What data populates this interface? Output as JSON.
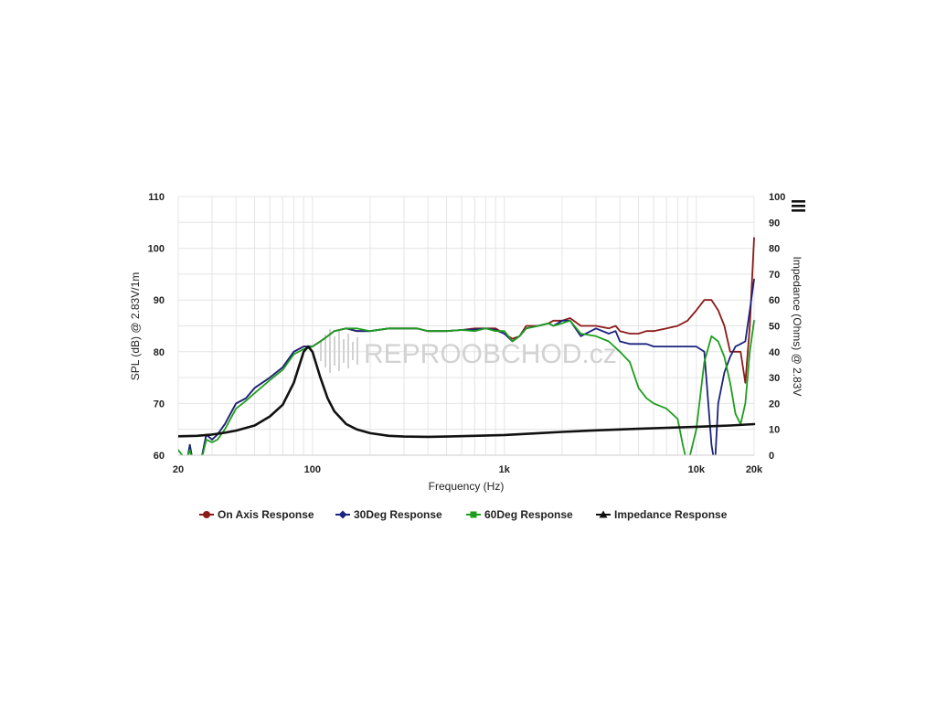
{
  "chart_data": {
    "type": "line",
    "watermark": "REPROOBCHOD.cz",
    "x_axis": {
      "label": "Frequency (Hz)",
      "scale": "log",
      "range": [
        20,
        20000
      ],
      "ticks": [
        {
          "value": 20,
          "label": "20"
        },
        {
          "value": 100,
          "label": "100"
        },
        {
          "value": 1000,
          "label": "1k"
        },
        {
          "value": 10000,
          "label": "10k"
        },
        {
          "value": 20000,
          "label": "20k"
        }
      ]
    },
    "y_axis_left": {
      "label": "SPL (dB) @ 2.83V/1m",
      "range": [
        60,
        110
      ],
      "ticks": [
        "60",
        "70",
        "80",
        "90",
        "100",
        "110"
      ]
    },
    "y_axis_right": {
      "label": "Impedance (Ohms) @ 2.83V",
      "range": [
        0,
        100
      ],
      "ticks": [
        "0",
        "10",
        "20",
        "30",
        "40",
        "50",
        "60",
        "70",
        "80",
        "90",
        "100"
      ]
    },
    "grid": true,
    "legend_position": "bottom",
    "series": [
      {
        "name": "On Axis Response",
        "color": "#8b1a1a",
        "marker": "circle",
        "axis": "left",
        "points": [
          [
            20,
            59
          ],
          [
            22,
            58
          ],
          [
            23,
            62
          ],
          [
            24,
            58
          ],
          [
            26,
            58
          ],
          [
            28,
            64
          ],
          [
            30,
            63
          ],
          [
            32,
            64
          ],
          [
            35,
            66
          ],
          [
            40,
            70
          ],
          [
            45,
            71
          ],
          [
            50,
            73
          ],
          [
            60,
            75
          ],
          [
            70,
            77
          ],
          [
            80,
            80
          ],
          [
            90,
            81
          ],
          [
            100,
            81
          ],
          [
            110,
            82
          ],
          [
            120,
            83
          ],
          [
            130,
            84
          ],
          [
            150,
            84.5
          ],
          [
            170,
            84
          ],
          [
            200,
            84
          ],
          [
            250,
            84.5
          ],
          [
            300,
            84.5
          ],
          [
            350,
            84.5
          ],
          [
            400,
            84
          ],
          [
            500,
            84
          ],
          [
            600,
            84.2
          ],
          [
            700,
            84.5
          ],
          [
            800,
            84.5
          ],
          [
            900,
            84.5
          ],
          [
            1000,
            83.5
          ],
          [
            1100,
            82.5
          ],
          [
            1200,
            83
          ],
          [
            1300,
            85
          ],
          [
            1500,
            85
          ],
          [
            1700,
            85.5
          ],
          [
            1800,
            86
          ],
          [
            2000,
            86
          ],
          [
            2200,
            86.5
          ],
          [
            2500,
            85
          ],
          [
            3000,
            85
          ],
          [
            3500,
            84.5
          ],
          [
            3800,
            85
          ],
          [
            4000,
            84
          ],
          [
            4500,
            83.5
          ],
          [
            5000,
            83.5
          ],
          [
            5500,
            84
          ],
          [
            6000,
            84
          ],
          [
            7000,
            84.5
          ],
          [
            8000,
            85
          ],
          [
            9000,
            86
          ],
          [
            10000,
            88
          ],
          [
            11000,
            90
          ],
          [
            12000,
            90
          ],
          [
            13000,
            88
          ],
          [
            14000,
            85
          ],
          [
            15000,
            80
          ],
          [
            16000,
            80
          ],
          [
            17000,
            80
          ],
          [
            18000,
            74
          ],
          [
            19000,
            85
          ],
          [
            20000,
            102
          ]
        ]
      },
      {
        "name": "30Deg Response",
        "color": "#1a237e",
        "marker": "diamond",
        "axis": "left",
        "points": [
          [
            20,
            59
          ],
          [
            22,
            58
          ],
          [
            23,
            62
          ],
          [
            24,
            58
          ],
          [
            26,
            58
          ],
          [
            28,
            64
          ],
          [
            30,
            63
          ],
          [
            32,
            64
          ],
          [
            35,
            66
          ],
          [
            40,
            70
          ],
          [
            45,
            71
          ],
          [
            50,
            73
          ],
          [
            60,
            75
          ],
          [
            70,
            77
          ],
          [
            80,
            80
          ],
          [
            90,
            81
          ],
          [
            100,
            81
          ],
          [
            110,
            82
          ],
          [
            120,
            83
          ],
          [
            130,
            84
          ],
          [
            150,
            84.5
          ],
          [
            170,
            84
          ],
          [
            200,
            84
          ],
          [
            250,
            84.5
          ],
          [
            300,
            84.5
          ],
          [
            350,
            84.5
          ],
          [
            400,
            84
          ],
          [
            500,
            84
          ],
          [
            600,
            84.2
          ],
          [
            700,
            84.3
          ],
          [
            800,
            84.5
          ],
          [
            900,
            84.2
          ],
          [
            1000,
            83.5
          ],
          [
            1100,
            82
          ],
          [
            1200,
            83
          ],
          [
            1300,
            84.5
          ],
          [
            1500,
            85
          ],
          [
            1700,
            85.5
          ],
          [
            1800,
            85
          ],
          [
            2000,
            86
          ],
          [
            2200,
            86
          ],
          [
            2500,
            83
          ],
          [
            3000,
            84.5
          ],
          [
            3500,
            83.5
          ],
          [
            3800,
            84
          ],
          [
            4000,
            82
          ],
          [
            4500,
            81.5
          ],
          [
            5000,
            81.5
          ],
          [
            5500,
            81.5
          ],
          [
            6000,
            81
          ],
          [
            7000,
            81
          ],
          [
            8000,
            81
          ],
          [
            9000,
            81
          ],
          [
            10000,
            81
          ],
          [
            11000,
            80
          ],
          [
            12000,
            62
          ],
          [
            12500,
            58
          ],
          [
            13000,
            70
          ],
          [
            14000,
            76
          ],
          [
            15000,
            79
          ],
          [
            16000,
            81
          ],
          [
            17000,
            81.5
          ],
          [
            18000,
            82
          ],
          [
            19000,
            88
          ],
          [
            20000,
            94
          ]
        ]
      },
      {
        "name": "60Deg Response",
        "color": "#1e9e1e",
        "marker": "square",
        "axis": "left",
        "points": [
          [
            20,
            61
          ],
          [
            22,
            59
          ],
          [
            23,
            61
          ],
          [
            24,
            58
          ],
          [
            26,
            58
          ],
          [
            28,
            63
          ],
          [
            30,
            62.5
          ],
          [
            32,
            63
          ],
          [
            35,
            65
          ],
          [
            40,
            69
          ],
          [
            45,
            70.5
          ],
          [
            50,
            72
          ],
          [
            60,
            74.5
          ],
          [
            70,
            76.5
          ],
          [
            80,
            79.5
          ],
          [
            90,
            80.5
          ],
          [
            100,
            81
          ],
          [
            110,
            82
          ],
          [
            120,
            83
          ],
          [
            130,
            84
          ],
          [
            150,
            84.5
          ],
          [
            170,
            84.5
          ],
          [
            200,
            84
          ],
          [
            250,
            84.5
          ],
          [
            300,
            84.5
          ],
          [
            350,
            84.5
          ],
          [
            400,
            84
          ],
          [
            500,
            84
          ],
          [
            600,
            84.2
          ],
          [
            700,
            84
          ],
          [
            800,
            84.5
          ],
          [
            900,
            84
          ],
          [
            1000,
            84
          ],
          [
            1100,
            82
          ],
          [
            1200,
            83
          ],
          [
            1300,
            84.5
          ],
          [
            1500,
            85
          ],
          [
            1700,
            85.5
          ],
          [
            1800,
            85
          ],
          [
            2000,
            85.5
          ],
          [
            2200,
            86
          ],
          [
            2500,
            83.5
          ],
          [
            3000,
            83
          ],
          [
            3500,
            82
          ],
          [
            4000,
            80
          ],
          [
            4500,
            78
          ],
          [
            5000,
            73
          ],
          [
            5500,
            71
          ],
          [
            6000,
            70
          ],
          [
            7000,
            69
          ],
          [
            8000,
            67
          ],
          [
            8500,
            62
          ],
          [
            9000,
            58
          ],
          [
            10000,
            65
          ],
          [
            11000,
            78
          ],
          [
            12000,
            83
          ],
          [
            13000,
            82
          ],
          [
            14000,
            79
          ],
          [
            15000,
            74
          ],
          [
            16000,
            68
          ],
          [
            17000,
            66
          ],
          [
            18000,
            70
          ],
          [
            19000,
            80
          ],
          [
            20000,
            86
          ]
        ]
      },
      {
        "name": "Impedance Response",
        "color": "#111111",
        "marker": "triangle",
        "axis": "right",
        "points": [
          [
            20,
            7.3
          ],
          [
            25,
            7.5
          ],
          [
            30,
            8
          ],
          [
            35,
            8.7
          ],
          [
            40,
            9.5
          ],
          [
            50,
            11.5
          ],
          [
            60,
            15
          ],
          [
            70,
            19.5
          ],
          [
            80,
            28
          ],
          [
            90,
            40
          ],
          [
            95,
            42
          ],
          [
            100,
            40
          ],
          [
            110,
            30
          ],
          [
            120,
            22
          ],
          [
            130,
            17
          ],
          [
            150,
            12
          ],
          [
            170,
            10
          ],
          [
            200,
            8.5
          ],
          [
            250,
            7.5
          ],
          [
            300,
            7.2
          ],
          [
            400,
            7.1
          ],
          [
            500,
            7.2
          ],
          [
            700,
            7.5
          ],
          [
            1000,
            7.8
          ],
          [
            1500,
            8.5
          ],
          [
            2000,
            9
          ],
          [
            3000,
            9.6
          ],
          [
            5000,
            10.2
          ],
          [
            7000,
            10.6
          ],
          [
            10000,
            11
          ],
          [
            12000,
            11.2
          ],
          [
            15000,
            11.5
          ],
          [
            20000,
            12
          ]
        ]
      }
    ]
  },
  "ui": {
    "menu_icon": "hamburger-menu-icon"
  }
}
